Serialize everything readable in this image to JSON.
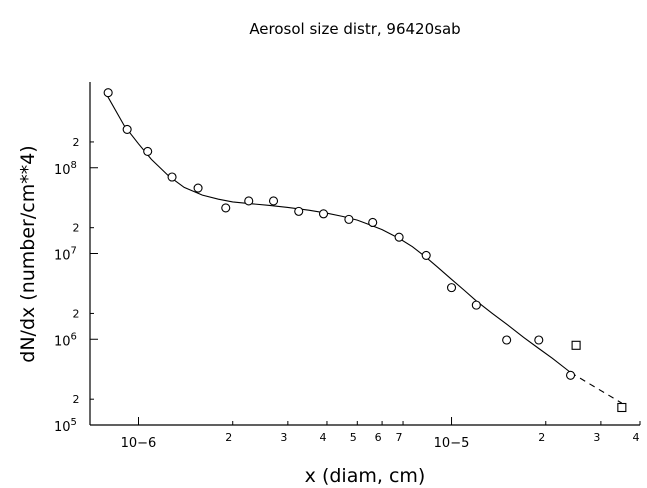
{
  "chart_data": {
    "type": "scatter",
    "title": "Aerosol size distr, 96420sab",
    "xlabel": "x (diam, cm)",
    "ylabel": "dN/dx (number/cm**4)",
    "xscale": "log",
    "yscale": "log",
    "xlim": [
      7e-07,
      4e-05
    ],
    "ylim": [
      100000.0,
      1000000000.0
    ],
    "grid": false,
    "legend": "none",
    "x_ticks": {
      "major": [
        {
          "value": 1e-06,
          "label": "10−6"
        },
        {
          "value": 1e-05,
          "label": "10−5"
        }
      ],
      "minor": [
        {
          "value": 2e-06,
          "label": "2"
        },
        {
          "value": 3e-06,
          "label": "3"
        },
        {
          "value": 4e-06,
          "label": "4"
        },
        {
          "value": 5e-06,
          "label": "5"
        },
        {
          "value": 6e-06,
          "label": "6"
        },
        {
          "value": 7e-06,
          "label": "7"
        },
        {
          "value": 2e-05,
          "label": "2"
        },
        {
          "value": 3e-05,
          "label": "3"
        },
        {
          "value": 4e-05,
          "label": "4"
        }
      ]
    },
    "y_ticks": {
      "major": [
        {
          "value": 100000.0,
          "label": "10",
          "exp": "5"
        },
        {
          "value": 1000000.0,
          "label": "10",
          "exp": "6"
        },
        {
          "value": 10000000.0,
          "label": "10",
          "exp": "7"
        },
        {
          "value": 100000000.0,
          "label": "10",
          "exp": "8"
        }
      ],
      "minor": [
        {
          "value": 200000.0,
          "label": "2"
        },
        {
          "value": 2000000.0,
          "label": "2"
        },
        {
          "value": 20000000.0,
          "label": "2"
        },
        {
          "value": 200000000.0,
          "label": "2"
        }
      ]
    },
    "series": [
      {
        "marker": "circle",
        "points": [
          {
            "x": 8e-07,
            "y": 750000000.0
          },
          {
            "x": 9.2e-07,
            "y": 280000000.0
          },
          {
            "x": 1.07e-06,
            "y": 155000000.0
          },
          {
            "x": 1.28e-06,
            "y": 78000000.0
          },
          {
            "x": 1.55e-06,
            "y": 58000000.0
          },
          {
            "x": 1.9e-06,
            "y": 34000000.0
          },
          {
            "x": 2.25e-06,
            "y": 41000000.0
          },
          {
            "x": 2.7e-06,
            "y": 41000000.0
          },
          {
            "x": 3.25e-06,
            "y": 31000000.0
          },
          {
            "x": 3.9e-06,
            "y": 29000000.0
          },
          {
            "x": 4.7e-06,
            "y": 25000000.0
          },
          {
            "x": 5.6e-06,
            "y": 23000000.0
          },
          {
            "x": 6.8e-06,
            "y": 15500000.0
          },
          {
            "x": 8.3e-06,
            "y": 9500000.0
          },
          {
            "x": 1e-05,
            "y": 4000000.0
          },
          {
            "x": 1.2e-05,
            "y": 2500000.0
          },
          {
            "x": 1.5e-05,
            "y": 980000.0
          },
          {
            "x": 1.9e-05,
            "y": 980000.0
          },
          {
            "x": 2.4e-05,
            "y": 380000.0
          }
        ]
      },
      {
        "marker": "square",
        "points": [
          {
            "x": 2.5e-05,
            "y": 850000.0
          },
          {
            "x": 3.5e-05,
            "y": 160000.0
          }
        ]
      }
    ],
    "fit_line": {
      "style": "solid",
      "points": [
        [
          7.9e-07,
          720000000.0
        ],
        [
          9e-07,
          310000000.0
        ],
        [
          1e-06,
          190000000.0
        ],
        [
          1.1e-06,
          125000000.0
        ],
        [
          1.25e-06,
          80000000.0
        ],
        [
          1.4e-06,
          59000000.0
        ],
        [
          1.6e-06,
          48000000.0
        ],
        [
          1.8e-06,
          43000000.0
        ],
        [
          2e-06,
          40000000.0
        ],
        [
          2.3e-06,
          38000000.0
        ],
        [
          2.6e-06,
          36500000.0
        ],
        [
          3e-06,
          34500000.0
        ],
        [
          3.5e-06,
          32000000.0
        ],
        [
          4e-06,
          29500000.0
        ],
        [
          4.5e-06,
          27000000.0
        ],
        [
          5e-06,
          24500000.0
        ],
        [
          5.5e-06,
          21500000.0
        ],
        [
          6e-06,
          19000000.0
        ],
        [
          6.8e-06,
          15000000.0
        ],
        [
          7.5e-06,
          12000000.0
        ],
        [
          8.3e-06,
          9000000.0
        ],
        [
          9e-06,
          7000000.0
        ],
        [
          1e-05,
          5000000.0
        ],
        [
          1.1e-05,
          3700000.0
        ],
        [
          1.2e-05,
          2800000.0
        ],
        [
          1.35e-05,
          2000000.0
        ],
        [
          1.5e-05,
          1500000.0
        ],
        [
          1.7e-05,
          1050000.0
        ],
        [
          1.9e-05,
          780000.0
        ],
        [
          2.1e-05,
          600000.0
        ],
        [
          2.4e-05,
          410000.0
        ]
      ]
    },
    "extrapolation_line": {
      "style": "dashed",
      "points": [
        [
          2.4e-05,
          410000.0
        ],
        [
          3.5e-05,
          180000.0
        ]
      ]
    }
  }
}
